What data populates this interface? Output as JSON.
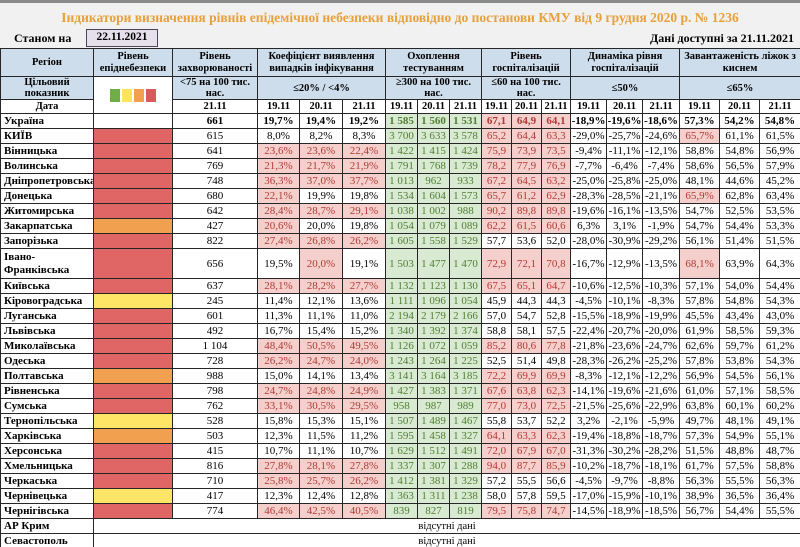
{
  "title": "Індикатори визначення рівнів епідемічної небезпеки відповідно до постанови КМУ від 9 грудня 2020 р. № 1236",
  "as_of_label": "Станом на",
  "as_of_date": "22.11.2021",
  "data_available_label": "Дані доступні за 21.11.2021",
  "header": {
    "region": "Регіон",
    "target": "Цільовий показник",
    "date": "Дата",
    "groups": [
      {
        "name": "epidanger",
        "label": "Рівень епіднебезпеки",
        "legend": true
      },
      {
        "name": "incidence",
        "label": "Рівень захворюваності",
        "threshold": "<75 на 100 тис. нас.",
        "dates": [
          "21.11"
        ]
      },
      {
        "name": "detection",
        "label": "Коефіцієнт виявлення випадків інфікування",
        "threshold": "≤20% / <4%",
        "dates": [
          "19.11",
          "20.11",
          "21.11"
        ]
      },
      {
        "name": "testing",
        "label": "Охоплення тестуванням",
        "threshold": "≥300 на 100 тис. нас.",
        "dates": [
          "19.11",
          "20.11",
          "21.11"
        ]
      },
      {
        "name": "hospitalization",
        "label": "Рівень госпіталізацій",
        "threshold": "≤60 на 100 тис. нас.",
        "dates": [
          "19.11",
          "20.11",
          "21.11"
        ]
      },
      {
        "name": "hosp-dynamics",
        "label": "Динаміка рівня госпіталізацій",
        "threshold": "≤50%",
        "dates": [
          "19.11",
          "20.11",
          "21.11"
        ]
      },
      {
        "name": "oxygen-beds",
        "label": "Завантаженість ліжок з киснем",
        "threshold": "≤65%",
        "dates": [
          "19.11",
          "20.11",
          "21.11"
        ]
      }
    ]
  },
  "legend": {
    "names": [
      "green",
      "yellow",
      "orange",
      "red"
    ],
    "colors": [
      "#70ad47",
      "#ffe25e",
      "#f0a04e",
      "#d65c5c"
    ]
  },
  "colors": {
    "level_red": "#e06666",
    "level_orange": "#f0a04e",
    "level_yellow": "#ffe566",
    "cell_green_bg": "#d9ead3",
    "cell_green_text": "#507e32",
    "cell_pink_bg": "#f5cfcb",
    "cell_red_text": "#b03a36",
    "header_bg": "#cdddec",
    "title_text": "#e7a03a",
    "date_box_bg": "#e6e0ec"
  },
  "rows": [
    {
      "region": "Україна",
      "level": "",
      "b": 1,
      "ill": "661",
      "coef": [
        "19,7%",
        "19,4%",
        "19,2%"
      ],
      "coefHl": [
        0,
        0,
        0
      ],
      "test": [
        "1 585",
        "1 560",
        "1 531"
      ],
      "hosp": [
        "67,1",
        "64,9",
        "64,1"
      ],
      "hospHl": 1,
      "dyn": [
        "-18,9%",
        "-19,6%",
        "-18,6%"
      ],
      "oxy": [
        "57,3%",
        "54,2%",
        "54,8%"
      ],
      "oxyHl": [
        0,
        0,
        0
      ]
    },
    {
      "region": "КИЇВ",
      "level": "red",
      "ill": "615",
      "coef": [
        "8,0%",
        "8,2%",
        "8,3%"
      ],
      "coefHl": [
        0,
        0,
        0
      ],
      "test": [
        "3 700",
        "3 633",
        "3 578"
      ],
      "hosp": [
        "65,2",
        "64,4",
        "63,3"
      ],
      "hospHl": 1,
      "dyn": [
        "-29,0%",
        "-25,7%",
        "-24,6%"
      ],
      "oxy": [
        "65,7%",
        "61,1%",
        "61,5%"
      ],
      "oxyHl": [
        1,
        0,
        0
      ]
    },
    {
      "region": "Вінницька",
      "level": "red",
      "ill": "641",
      "coef": [
        "23,6%",
        "23,6%",
        "22,4%"
      ],
      "coefHl": [
        1,
        1,
        1
      ],
      "test": [
        "1 422",
        "1 415",
        "1 424"
      ],
      "hosp": [
        "75,9",
        "73,9",
        "73,5"
      ],
      "hospHl": 1,
      "dyn": [
        "-9,4%",
        "-11,1%",
        "-12,1%"
      ],
      "oxy": [
        "58,8%",
        "54,8%",
        "56,9%"
      ],
      "oxyHl": [
        0,
        0,
        0
      ]
    },
    {
      "region": "Волинська",
      "level": "red",
      "ill": "769",
      "coef": [
        "21,3%",
        "21,7%",
        "21,9%"
      ],
      "coefHl": [
        1,
        1,
        1
      ],
      "test": [
        "1 791",
        "1 768",
        "1 739"
      ],
      "hosp": [
        "78,2",
        "77,9",
        "76,9"
      ],
      "hospHl": 1,
      "dyn": [
        "-7,7%",
        "-6,4%",
        "-7,4%"
      ],
      "oxy": [
        "58,6%",
        "56,5%",
        "57,9%"
      ],
      "oxyHl": [
        0,
        0,
        0
      ]
    },
    {
      "region": "Дніпропетровська",
      "level": "red",
      "ill": "748",
      "coef": [
        "36,3%",
        "37,0%",
        "37,7%"
      ],
      "coefHl": [
        1,
        1,
        1
      ],
      "test": [
        "1 013",
        "962",
        "933"
      ],
      "hosp": [
        "67,2",
        "64,5",
        "63,2"
      ],
      "hospHl": 1,
      "dyn": [
        "-25,0%",
        "-25,8%",
        "-25,0%"
      ],
      "oxy": [
        "48,1%",
        "44,6%",
        "45,2%"
      ],
      "oxyHl": [
        0,
        0,
        0
      ]
    },
    {
      "region": "Донецька",
      "level": "red",
      "ill": "680",
      "coef": [
        "22,1%",
        "19,9%",
        "19,8%"
      ],
      "coefHl": [
        1,
        0,
        0
      ],
      "test": [
        "1 534",
        "1 604",
        "1 573"
      ],
      "hosp": [
        "65,7",
        "61,2",
        "62,9"
      ],
      "hospHl": 1,
      "dyn": [
        "-28,3%",
        "-28,5%",
        "-21,1%"
      ],
      "oxy": [
        "65,9%",
        "62,8%",
        "63,4%"
      ],
      "oxyHl": [
        1,
        0,
        0
      ]
    },
    {
      "region": "Житомирська",
      "level": "red",
      "ill": "642",
      "coef": [
        "28,4%",
        "28,7%",
        "29,1%"
      ],
      "coefHl": [
        1,
        1,
        1
      ],
      "test": [
        "1 038",
        "1 002",
        "988"
      ],
      "hosp": [
        "90,2",
        "89,8",
        "89,8"
      ],
      "hospHl": 1,
      "dyn": [
        "-19,6%",
        "-16,1%",
        "-13,5%"
      ],
      "oxy": [
        "54,7%",
        "52,5%",
        "53,5%"
      ],
      "oxyHl": [
        0,
        0,
        0
      ]
    },
    {
      "region": "Закарпатська",
      "level": "orange",
      "ill": "427",
      "coef": [
        "20,6%",
        "20,0%",
        "19,8%"
      ],
      "coefHl": [
        1,
        0,
        0
      ],
      "test": [
        "1 054",
        "1 079",
        "1 089"
      ],
      "hosp": [
        "62,2",
        "61,5",
        "60,6"
      ],
      "hospHl": 1,
      "dyn": [
        "6,3%",
        "3,1%",
        "-1,9%"
      ],
      "oxy": [
        "54,7%",
        "54,4%",
        "53,3%"
      ],
      "oxyHl": [
        0,
        0,
        0
      ]
    },
    {
      "region": "Запорізька",
      "level": "red",
      "ill": "822",
      "coef": [
        "27,4%",
        "26,8%",
        "26,2%"
      ],
      "coefHl": [
        1,
        1,
        1
      ],
      "test": [
        "1 605",
        "1 558",
        "1 529"
      ],
      "hosp": [
        "57,7",
        "53,6",
        "52,0"
      ],
      "hospHl": 0,
      "dyn": [
        "-28,0%",
        "-30,9%",
        "-29,2%"
      ],
      "oxy": [
        "56,1%",
        "51,4%",
        "51,5%"
      ],
      "oxyHl": [
        0,
        0,
        0
      ]
    },
    {
      "region": "Івано-Франківська",
      "level": "red",
      "tall": 1,
      "ill": "656",
      "coef": [
        "19,5%",
        "20,0%",
        "19,1%"
      ],
      "coefHl": [
        0,
        1,
        0
      ],
      "test": [
        "1 503",
        "1 477",
        "1 470"
      ],
      "hosp": [
        "72,9",
        "72,1",
        "70,8"
      ],
      "hospHl": 1,
      "dyn": [
        "-16,7%",
        "-12,9%",
        "-13,5%"
      ],
      "oxy": [
        "68,1%",
        "63,9%",
        "64,3%"
      ],
      "oxyHl": [
        1,
        0,
        0
      ]
    },
    {
      "region": "Київська",
      "level": "red",
      "ill": "637",
      "coef": [
        "28,1%",
        "28,2%",
        "27,7%"
      ],
      "coefHl": [
        1,
        1,
        1
      ],
      "test": [
        "1 132",
        "1 123",
        "1 130"
      ],
      "hosp": [
        "67,5",
        "65,1",
        "64,7"
      ],
      "hospHl": 1,
      "dyn": [
        "-10,6%",
        "-12,5%",
        "-10,3%"
      ],
      "oxy": [
        "57,1%",
        "54,0%",
        "54,4%"
      ],
      "oxyHl": [
        0,
        0,
        0
      ]
    },
    {
      "region": "Кіровоградська",
      "level": "yellow",
      "ill": "245",
      "coef": [
        "11,4%",
        "12,1%",
        "13,6%"
      ],
      "coefHl": [
        0,
        0,
        0
      ],
      "test": [
        "1 111",
        "1 096",
        "1 054"
      ],
      "hosp": [
        "45,9",
        "44,3",
        "44,3"
      ],
      "hospHl": 0,
      "dyn": [
        "-4,5%",
        "-10,1%",
        "-8,3%"
      ],
      "oxy": [
        "57,8%",
        "54,8%",
        "54,3%"
      ],
      "oxyHl": [
        0,
        0,
        0
      ]
    },
    {
      "region": "Луганська",
      "level": "red",
      "ill": "601",
      "coef": [
        "11,3%",
        "11,1%",
        "11,0%"
      ],
      "coefHl": [
        0,
        0,
        0
      ],
      "test": [
        "2 194",
        "2 179",
        "2 166"
      ],
      "hosp": [
        "57,0",
        "54,7",
        "52,8"
      ],
      "hospHl": 0,
      "dyn": [
        "-15,5%",
        "-18,9%",
        "-19,9%"
      ],
      "oxy": [
        "45,5%",
        "43,4%",
        "43,0%"
      ],
      "oxyHl": [
        0,
        0,
        0
      ]
    },
    {
      "region": "Львівська",
      "level": "red",
      "ill": "492",
      "coef": [
        "16,7%",
        "15,4%",
        "15,2%"
      ],
      "coefHl": [
        0,
        0,
        0
      ],
      "test": [
        "1 340",
        "1 392",
        "1 374"
      ],
      "hosp": [
        "58,8",
        "58,1",
        "57,5"
      ],
      "hospHl": 0,
      "dyn": [
        "-22,4%",
        "-20,7%",
        "-20,0%"
      ],
      "oxy": [
        "61,9%",
        "58,5%",
        "59,3%"
      ],
      "oxyHl": [
        0,
        0,
        0
      ]
    },
    {
      "region": "Миколаївська",
      "level": "red",
      "ill": "1 104",
      "coef": [
        "48,4%",
        "50,5%",
        "49,5%"
      ],
      "coefHl": [
        1,
        1,
        1
      ],
      "test": [
        "1 126",
        "1 072",
        "1 059"
      ],
      "hosp": [
        "85,2",
        "80,6",
        "77,8"
      ],
      "hospHl": 1,
      "dyn": [
        "-21,8%",
        "-23,6%",
        "-24,7%"
      ],
      "oxy": [
        "62,6%",
        "59,7%",
        "61,2%"
      ],
      "oxyHl": [
        0,
        0,
        0
      ]
    },
    {
      "region": "Одеська",
      "level": "red",
      "ill": "728",
      "coef": [
        "26,2%",
        "24,7%",
        "24,0%"
      ],
      "coefHl": [
        1,
        1,
        1
      ],
      "test": [
        "1 243",
        "1 264",
        "1 225"
      ],
      "hosp": [
        "52,5",
        "51,4",
        "49,8"
      ],
      "hospHl": 0,
      "dyn": [
        "-28,3%",
        "-26,2%",
        "-25,2%"
      ],
      "oxy": [
        "57,8%",
        "53,8%",
        "54,3%"
      ],
      "oxyHl": [
        0,
        0,
        0
      ]
    },
    {
      "region": "Полтавська",
      "level": "orange",
      "ill": "988",
      "coef": [
        "15,0%",
        "14,1%",
        "13,4%"
      ],
      "coefHl": [
        0,
        0,
        0
      ],
      "test": [
        "3 141",
        "3 164",
        "3 185"
      ],
      "hosp": [
        "72,2",
        "69,9",
        "69,9"
      ],
      "hospHl": 1,
      "dyn": [
        "-8,3%",
        "-12,1%",
        "-12,2%"
      ],
      "oxy": [
        "56,9%",
        "54,5%",
        "56,1%"
      ],
      "oxyHl": [
        0,
        0,
        0
      ]
    },
    {
      "region": "Рівненська",
      "level": "red",
      "ill": "798",
      "coef": [
        "24,7%",
        "24,8%",
        "24,9%"
      ],
      "coefHl": [
        1,
        1,
        1
      ],
      "test": [
        "1 427",
        "1 383",
        "1 371"
      ],
      "hosp": [
        "67,6",
        "63,8",
        "62,3"
      ],
      "hospHl": 1,
      "dyn": [
        "-14,1%",
        "-19,6%",
        "-21,6%"
      ],
      "oxy": [
        "61,0%",
        "57,1%",
        "58,5%"
      ],
      "oxyHl": [
        0,
        0,
        0
      ]
    },
    {
      "region": "Сумська",
      "level": "red",
      "ill": "762",
      "coef": [
        "33,1%",
        "30,5%",
        "29,5%"
      ],
      "coefHl": [
        1,
        1,
        1
      ],
      "test": [
        "958",
        "987",
        "989"
      ],
      "hosp": [
        "77,0",
        "73,0",
        "72,5"
      ],
      "hospHl": 1,
      "dyn": [
        "-21,5%",
        "-25,6%",
        "-22,9%"
      ],
      "oxy": [
        "63,8%",
        "60,1%",
        "60,2%"
      ],
      "oxyHl": [
        0,
        0,
        0
      ]
    },
    {
      "region": "Тернопільська",
      "level": "yellow",
      "ill": "528",
      "coef": [
        "15,8%",
        "15,3%",
        "15,1%"
      ],
      "coefHl": [
        0,
        0,
        0
      ],
      "test": [
        "1 507",
        "1 489",
        "1 467"
      ],
      "hosp": [
        "55,8",
        "53,7",
        "52,2"
      ],
      "hospHl": 0,
      "dyn": [
        "3,2%",
        "-2,1%",
        "-5,9%"
      ],
      "oxy": [
        "49,7%",
        "48,1%",
        "49,1%"
      ],
      "oxyHl": [
        0,
        0,
        0
      ]
    },
    {
      "region": "Харківська",
      "level": "orange",
      "ill": "503",
      "coef": [
        "12,3%",
        "11,5%",
        "11,2%"
      ],
      "coefHl": [
        0,
        0,
        0
      ],
      "test": [
        "1 595",
        "1 458",
        "1 327"
      ],
      "hosp": [
        "64,1",
        "63,3",
        "62,3"
      ],
      "hospHl": 1,
      "dyn": [
        "-19,4%",
        "-18,8%",
        "-18,7%"
      ],
      "oxy": [
        "57,3%",
        "54,9%",
        "55,1%"
      ],
      "oxyHl": [
        0,
        0,
        0
      ]
    },
    {
      "region": "Херсонська",
      "level": "red",
      "ill": "415",
      "coef": [
        "10,7%",
        "11,1%",
        "10,7%"
      ],
      "coefHl": [
        0,
        0,
        0
      ],
      "test": [
        "1 629",
        "1 512",
        "1 491"
      ],
      "hosp": [
        "72,0",
        "67,9",
        "67,0"
      ],
      "hospHl": 1,
      "dyn": [
        "-31,3%",
        "-30,2%",
        "-28,2%"
      ],
      "oxy": [
        "51,5%",
        "48,8%",
        "48,7%"
      ],
      "oxyHl": [
        0,
        0,
        0
      ]
    },
    {
      "region": "Хмельницька",
      "level": "red",
      "ill": "816",
      "coef": [
        "27,8%",
        "28,1%",
        "27,8%"
      ],
      "coefHl": [
        1,
        1,
        1
      ],
      "test": [
        "1 337",
        "1 307",
        "1 288"
      ],
      "hosp": [
        "94,0",
        "87,7",
        "85,9"
      ],
      "hospHl": 1,
      "dyn": [
        "-10,2%",
        "-18,7%",
        "-18,1%"
      ],
      "oxy": [
        "61,7%",
        "57,5%",
        "58,8%"
      ],
      "oxyHl": [
        0,
        0,
        0
      ]
    },
    {
      "region": "Черкаська",
      "level": "red",
      "ill": "710",
      "coef": [
        "25,8%",
        "25,7%",
        "26,2%"
      ],
      "coefHl": [
        1,
        1,
        1
      ],
      "test": [
        "1 412",
        "1 381",
        "1 329"
      ],
      "hosp": [
        "57,2",
        "55,5",
        "56,6"
      ],
      "hospHl": 0,
      "dyn": [
        "-4,5%",
        "-9,7%",
        "-8,8%"
      ],
      "oxy": [
        "56,3%",
        "55,5%",
        "56,3%"
      ],
      "oxyHl": [
        0,
        0,
        0
      ]
    },
    {
      "region": "Чернівецька",
      "level": "yellow",
      "ill": "417",
      "coef": [
        "12,3%",
        "12,4%",
        "12,8%"
      ],
      "coefHl": [
        0,
        0,
        0
      ],
      "test": [
        "1 363",
        "1 311",
        "1 238"
      ],
      "hosp": [
        "58,0",
        "57,8",
        "59,5"
      ],
      "hospHl": 0,
      "dyn": [
        "-17,0%",
        "-15,9%",
        "-10,1%"
      ],
      "oxy": [
        "38,9%",
        "36,5%",
        "36,4%"
      ],
      "oxyHl": [
        0,
        0,
        0
      ]
    },
    {
      "region": "Чернігівська",
      "level": "red",
      "ill": "774",
      "coef": [
        "46,4%",
        "42,5%",
        "40,5%"
      ],
      "coefHl": [
        1,
        1,
        1
      ],
      "test": [
        "839",
        "827",
        "819"
      ],
      "hosp": [
        "79,5",
        "75,8",
        "74,7"
      ],
      "hospHl": 1,
      "dyn": [
        "-14,5%",
        "-18,9%",
        "-18,5%"
      ],
      "oxy": [
        "56,7%",
        "54,4%",
        "55,5%"
      ],
      "oxyHl": [
        0,
        0,
        0
      ]
    }
  ],
  "no_data_rows": [
    {
      "region": "АР Крим",
      "text": "відсутні дані"
    },
    {
      "region": "Севастополь",
      "text": "відсутні дані"
    }
  ]
}
